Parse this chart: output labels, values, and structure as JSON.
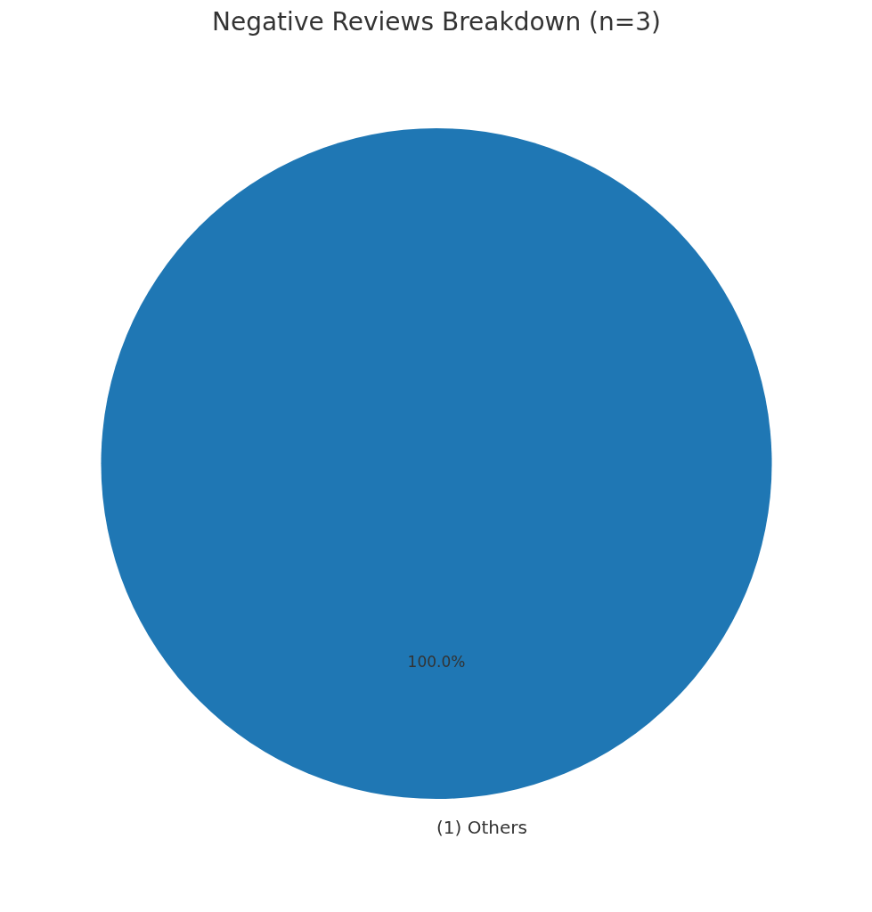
{
  "chart_data": {
    "type": "pie",
    "title": "Negative Reviews Breakdown (n=3)",
    "categories": [
      "(1) Others"
    ],
    "values": [
      100
    ],
    "colors": [
      "#1f77b4"
    ],
    "value_labels": [
      "100.0%"
    ]
  }
}
